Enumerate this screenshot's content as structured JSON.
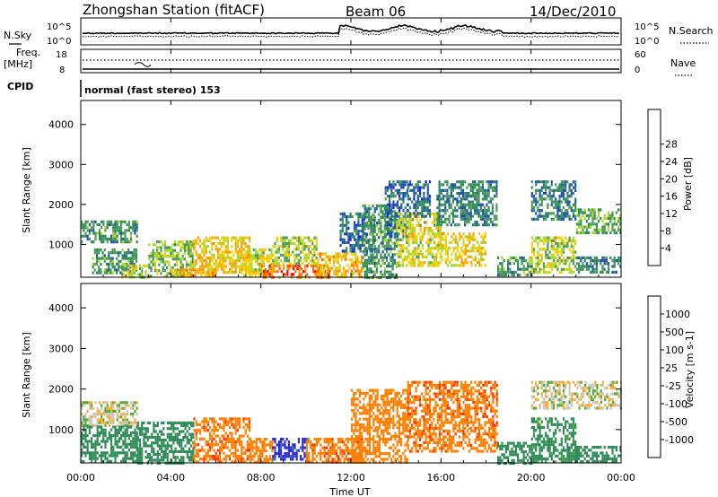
{
  "header": {
    "station": "Zhongshan Station (fitACF)",
    "beam": "Beam 06",
    "date": "14/Dec/2010"
  },
  "noise_panel": {
    "left_label": "N.Sky",
    "right_label": "N.Search",
    "left_ticks": [
      "10^5",
      "10^0"
    ],
    "right_ticks": [
      "10^5",
      "10^0"
    ]
  },
  "freq_panel": {
    "left_label_1": "Freq.",
    "left_label_2": "[MHz]",
    "right_label": "Nave",
    "left_ticks": [
      "18",
      "8"
    ],
    "right_ticks": [
      "60",
      "0"
    ]
  },
  "cpid": {
    "label": "CPID",
    "mode": "normal (fast stereo) 153"
  },
  "x_axis": {
    "label": "Time UT",
    "ticks": [
      "00:00",
      "04:00",
      "08:00",
      "12:00",
      "16:00",
      "20:00",
      "00:00"
    ]
  },
  "colors": {
    "power": [
      "#1a1aff",
      "#1f4fb0",
      "#2e8b57",
      "#4e9a5a",
      "#a8d82a",
      "#ffcc00",
      "#ff9900",
      "#ff6600",
      "#ff0000"
    ],
    "velocity": [
      "#2a2acf",
      "#2e6bb5",
      "#2e8b57",
      "#55aa33",
      "#c8c8c0",
      "#ffaa33",
      "#ff7f00",
      "#ff3300",
      "#ff0000"
    ]
  },
  "chart_data": [
    {
      "type": "heatmap",
      "title": "",
      "xlabel": "Time UT",
      "ylabel": "Slant Range [km]",
      "x_range_hours": [
        0,
        24
      ],
      "ylim": [
        180,
        4600
      ],
      "yticks": [
        1000,
        2000,
        3000,
        4000
      ],
      "colorbar": {
        "label": "Power [dB]",
        "range": [
          0,
          32
        ],
        "ticks": [
          "4",
          "8",
          "12",
          "16",
          "20",
          "24",
          "28"
        ]
      },
      "regions": [
        {
          "t0": 0.0,
          "t1": 2.5,
          "r0": 1050,
          "r1": 1600,
          "level": 12
        },
        {
          "t0": 0.5,
          "t1": 2.5,
          "r0": 300,
          "r1": 900,
          "level": 12
        },
        {
          "t0": 1.8,
          "t1": 3.0,
          "r0": 200,
          "r1": 500,
          "level": 18
        },
        {
          "t0": 3.0,
          "t1": 5.0,
          "r0": 200,
          "r1": 1100,
          "level": 16
        },
        {
          "t0": 4.0,
          "t1": 6.0,
          "r0": 200,
          "r1": 400,
          "level": 26
        },
        {
          "t0": 5.0,
          "t1": 7.5,
          "r0": 300,
          "r1": 1200,
          "level": 22
        },
        {
          "t0": 7.2,
          "t1": 8.5,
          "r0": 200,
          "r1": 900,
          "level": 20
        },
        {
          "t0": 8.0,
          "t1": 11.0,
          "r0": 180,
          "r1": 500,
          "level": 30
        },
        {
          "t0": 8.5,
          "t1": 10.5,
          "r0": 500,
          "r1": 1200,
          "level": 18
        },
        {
          "t0": 10.5,
          "t1": 12.5,
          "r0": 200,
          "r1": 800,
          "level": 24
        },
        {
          "t0": 11.5,
          "t1": 13.0,
          "r0": 800,
          "r1": 1800,
          "level": 8
        },
        {
          "t0": 12.5,
          "t1": 14.0,
          "r0": 200,
          "r1": 2000,
          "level": 12
        },
        {
          "t0": 13.5,
          "t1": 14.5,
          "r0": 1200,
          "r1": 2600,
          "level": 8
        },
        {
          "t0": 14.0,
          "t1": 16.0,
          "r0": 500,
          "r1": 1800,
          "level": 20
        },
        {
          "t0": 14.5,
          "t1": 15.5,
          "r0": 1700,
          "r1": 2600,
          "level": 8
        },
        {
          "t0": 16.0,
          "t1": 18.0,
          "r0": 500,
          "r1": 1300,
          "level": 22
        },
        {
          "t0": 15.8,
          "t1": 18.5,
          "r0": 1500,
          "r1": 2600,
          "level": 10
        },
        {
          "t0": 18.5,
          "t1": 20.0,
          "r0": 200,
          "r1": 700,
          "level": 12
        },
        {
          "t0": 20.0,
          "t1": 22.0,
          "r0": 300,
          "r1": 1200,
          "level": 18
        },
        {
          "t0": 20.0,
          "t1": 22.0,
          "r0": 1600,
          "r1": 2600,
          "level": 10
        },
        {
          "t0": 22.0,
          "t1": 24.0,
          "r0": 1300,
          "r1": 1900,
          "level": 14
        },
        {
          "t0": 22.0,
          "t1": 24.0,
          "r0": 300,
          "r1": 700,
          "level": 10
        }
      ]
    },
    {
      "type": "heatmap",
      "title": "",
      "xlabel": "Time UT",
      "ylabel": "Slant Range [km]",
      "x_range_hours": [
        0,
        24
      ],
      "ylim": [
        180,
        4600
      ],
      "yticks": [
        1000,
        2000,
        3000,
        4000
      ],
      "colorbar": {
        "label": "Velocity [m s-1]",
        "range": [
          -1200,
          1200
        ],
        "ticks": [
          "1000",
          "500",
          "100",
          "25",
          "-25",
          "-100",
          "-500",
          "-1000"
        ]
      },
      "regions": [
        {
          "t0": 0.0,
          "t1": 2.5,
          "r0": 1100,
          "r1": 1700,
          "level": 0
        },
        {
          "t0": 0.0,
          "t1": 2.5,
          "r0": 200,
          "r1": 1100,
          "level": 200
        },
        {
          "t0": 2.5,
          "t1": 5.0,
          "r0": 200,
          "r1": 1200,
          "level": 300
        },
        {
          "t0": 5.0,
          "t1": 7.5,
          "r0": 200,
          "r1": 1300,
          "level": -400
        },
        {
          "t0": 7.5,
          "t1": 8.5,
          "r0": 200,
          "r1": 800,
          "level": -300
        },
        {
          "t0": 8.5,
          "t1": 10.0,
          "r0": 300,
          "r1": 800,
          "level": 1100
        },
        {
          "t0": 10.0,
          "t1": 12.5,
          "r0": 200,
          "r1": 800,
          "level": -400
        },
        {
          "t0": 12.0,
          "t1": 14.5,
          "r0": 200,
          "r1": 2000,
          "level": -300
        },
        {
          "t0": 14.5,
          "t1": 18.5,
          "r0": 500,
          "r1": 2200,
          "level": -400
        },
        {
          "t0": 18.5,
          "t1": 20.0,
          "r0": 200,
          "r1": 700,
          "level": 200
        },
        {
          "t0": 20.0,
          "t1": 22.0,
          "r0": 200,
          "r1": 1300,
          "level": 150
        },
        {
          "t0": 20.0,
          "t1": 24.0,
          "r0": 1500,
          "r1": 2200,
          "level": 0
        },
        {
          "t0": 22.0,
          "t1": 24.0,
          "r0": 200,
          "r1": 600,
          "level": 200
        }
      ]
    }
  ]
}
